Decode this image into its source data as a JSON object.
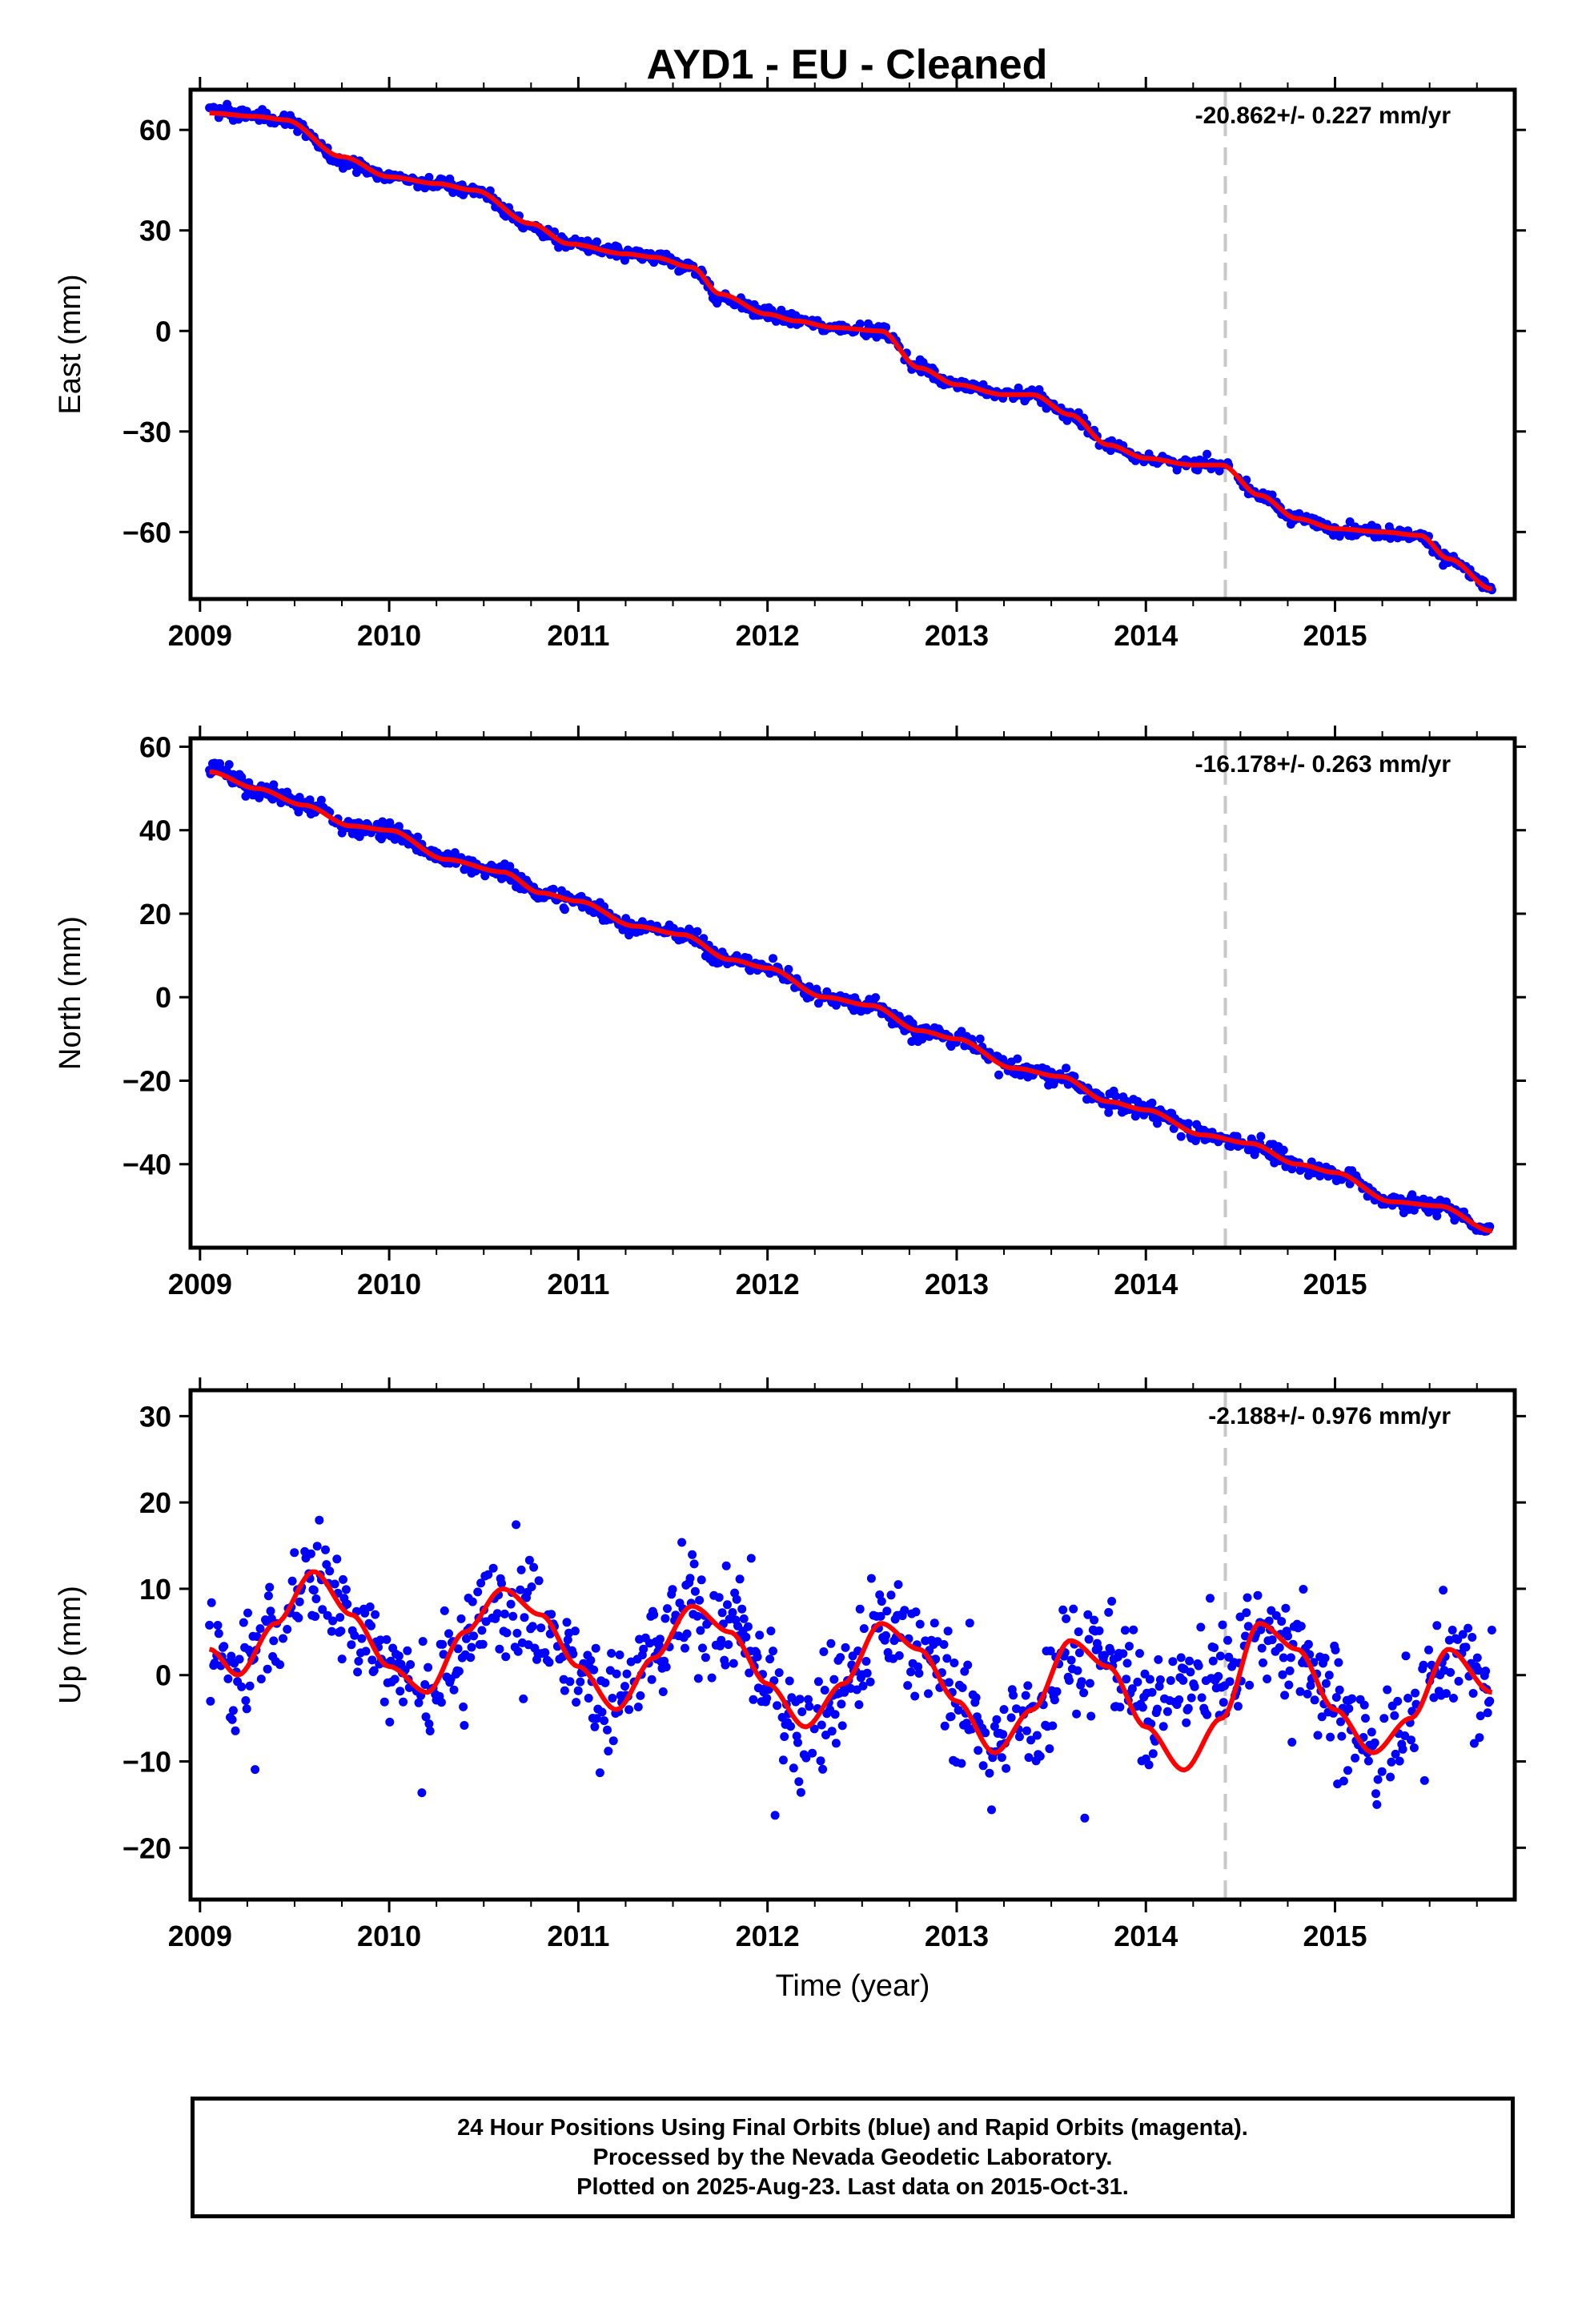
{
  "title": "AYD1  - EU - Cleaned",
  "footer": {
    "line1": "24 Hour Positions Using Final Orbits (blue) and Rapid Orbits (magenta).",
    "line2": "Processed by the Nevada Geodetic Laboratory.",
    "line3": "Plotted on 2025-Aug-23. Last data on 2015-Oct-31."
  },
  "colors": {
    "daily_positions": "#0000ff",
    "model_fit": "#ff0000",
    "event_marker": "#c8c8c8",
    "frame": "#000000"
  },
  "chart_data": [
    {
      "type": "scatter",
      "ylabel": "East (mm)",
      "xlabel": "",
      "rate_label": "-20.862+/- 0.227 mm/yr",
      "xlim": [
        2008.95,
        2015.95
      ],
      "ylim": [
        -80,
        72
      ],
      "yticks": [
        -60,
        -30,
        0,
        30,
        60
      ],
      "ytick_labels": [
        "−60",
        "−30",
        "0",
        "30",
        "60"
      ],
      "xticks": [
        2009,
        2010,
        2011,
        2012,
        2013,
        2014,
        2015
      ],
      "xtick_labels": [
        "2009",
        "2010",
        "2011",
        "2012",
        "2013",
        "2014",
        "2015"
      ],
      "event_line_x": 2014.42,
      "data_range": [
        2009.05,
        2015.83
      ],
      "series": [
        {
          "kind": "points",
          "noise": 1.3,
          "outlier_rate": 0.0,
          "x": [
            2009.05,
            2009.3,
            2009.45,
            2009.75,
            2010.0,
            2010.25,
            2010.45,
            2010.75,
            2010.95,
            2011.25,
            2011.4,
            2011.6,
            2011.75,
            2012.0,
            2012.15,
            2012.35,
            2012.6,
            2012.8,
            2013.0,
            2013.25,
            2013.4,
            2013.6,
            2013.8,
            2014.0,
            2014.25,
            2014.4,
            2014.6,
            2014.8,
            2015.0,
            2015.25,
            2015.45,
            2015.6,
            2015.83
          ],
          "y": [
            66,
            64,
            63,
            51,
            46,
            44,
            42,
            31,
            26,
            23,
            22,
            19,
            10,
            5,
            3,
            1,
            0,
            -11,
            -16,
            -19,
            -19,
            -25,
            -34,
            -38,
            -40,
            -40,
            -49,
            -56,
            -59,
            -60,
            -61,
            -68,
            -77
          ]
        },
        {
          "kind": "line",
          "x": [
            2009.05,
            2009.3,
            2009.45,
            2009.75,
            2010.0,
            2010.25,
            2010.45,
            2010.75,
            2010.95,
            2011.25,
            2011.4,
            2011.6,
            2011.75,
            2012.0,
            2012.15,
            2012.35,
            2012.6,
            2012.8,
            2013.0,
            2013.25,
            2013.4,
            2013.6,
            2013.8,
            2014.0,
            2014.25,
            2014.4,
            2014.6,
            2014.8,
            2015.0,
            2015.25,
            2015.45,
            2015.6,
            2015.83
          ],
          "y": [
            65,
            64,
            63,
            52,
            46,
            44,
            42,
            32,
            26,
            23,
            22,
            19,
            11,
            5,
            3,
            1,
            0,
            -11,
            -16,
            -19,
            -19,
            -25,
            -34,
            -38,
            -40,
            -40,
            -49,
            -56,
            -59,
            -60,
            -61,
            -68,
            -77
          ]
        }
      ]
    },
    {
      "type": "scatter",
      "ylabel": "North (mm)",
      "xlabel": "",
      "rate_label": "-16.178+/- 0.263 mm/yr",
      "xlim": [
        2008.95,
        2015.95
      ],
      "ylim": [
        -60,
        62
      ],
      "yticks": [
        -40,
        -20,
        0,
        20,
        40,
        60
      ],
      "ytick_labels": [
        "−40",
        "−20",
        "0",
        "20",
        "40",
        "60"
      ],
      "xticks": [
        2009,
        2010,
        2011,
        2012,
        2013,
        2014,
        2015
      ],
      "xtick_labels": [
        "2009",
        "2010",
        "2011",
        "2012",
        "2013",
        "2014",
        "2015"
      ],
      "event_line_x": 2014.42,
      "data_range": [
        2009.05,
        2015.83
      ],
      "series": [
        {
          "kind": "points",
          "noise": 1.4,
          "outlier_rate": 0.004,
          "x": [
            2009.05,
            2009.3,
            2009.55,
            2009.8,
            2010.0,
            2010.3,
            2010.6,
            2010.8,
            2011.0,
            2011.3,
            2011.55,
            2011.8,
            2012.0,
            2012.3,
            2012.55,
            2012.8,
            2013.0,
            2013.3,
            2013.55,
            2013.8,
            2014.0,
            2014.3,
            2014.55,
            2014.8,
            2015.0,
            2015.3,
            2015.55,
            2015.83
          ],
          "y": [
            55,
            50,
            46,
            41,
            40,
            33,
            30,
            25,
            23,
            17,
            15,
            9,
            7,
            0,
            -2,
            -8,
            -10,
            -17,
            -19,
            -25,
            -27,
            -33,
            -35,
            -40,
            -42,
            -49,
            -50,
            -56
          ]
        },
        {
          "kind": "line",
          "x": [
            2009.05,
            2009.3,
            2009.55,
            2009.8,
            2010.0,
            2010.3,
            2010.6,
            2010.8,
            2011.0,
            2011.3,
            2011.55,
            2011.8,
            2012.0,
            2012.3,
            2012.55,
            2012.8,
            2013.0,
            2013.3,
            2013.55,
            2013.8,
            2014.0,
            2014.3,
            2014.55,
            2014.8,
            2015.0,
            2015.3,
            2015.55,
            2015.83
          ],
          "y": [
            54,
            50,
            46,
            41,
            40,
            33,
            30,
            25,
            23,
            17,
            15,
            9,
            7,
            0,
            -2,
            -8,
            -10,
            -17,
            -19,
            -25,
            -27,
            -33,
            -35,
            -40,
            -42,
            -49,
            -50,
            -56
          ]
        }
      ]
    },
    {
      "type": "scatter",
      "ylabel": "Up (mm)",
      "xlabel": "Time (year)",
      "rate_label": "-2.188+/- 0.976 mm/yr",
      "xlim": [
        2008.95,
        2015.95
      ],
      "ylim": [
        -26,
        33
      ],
      "yticks": [
        -20,
        -10,
        0,
        10,
        20,
        30
      ],
      "ytick_labels": [
        "−20",
        "−10",
        "0",
        "10",
        "20",
        "30"
      ],
      "xticks": [
        2009,
        2010,
        2011,
        2012,
        2013,
        2014,
        2015
      ],
      "xtick_labels": [
        "2009",
        "2010",
        "2011",
        "2012",
        "2013",
        "2014",
        "2015"
      ],
      "event_line_x": 2014.42,
      "data_range": [
        2009.05,
        2015.83
      ],
      "series": [
        {
          "kind": "points",
          "noise": 4.5,
          "outlier_rate": 0.02,
          "x": [
            2009.05,
            2009.2,
            2009.4,
            2009.6,
            2009.8,
            2010.0,
            2010.2,
            2010.4,
            2010.6,
            2010.8,
            2011.0,
            2011.2,
            2011.4,
            2011.6,
            2011.8,
            2012.0,
            2012.2,
            2012.4,
            2012.6,
            2012.8,
            2013.0,
            2013.2,
            2013.4,
            2013.6,
            2013.8,
            2014.0,
            2014.2,
            2014.4,
            2014.6,
            2014.8,
            2015.0,
            2015.2,
            2015.4,
            2015.6,
            2015.83
          ],
          "y": [
            3,
            0,
            5,
            12,
            7,
            1,
            -2,
            4,
            10,
            8,
            1,
            -4,
            2,
            8,
            6,
            -1,
            -6,
            -1,
            5,
            4,
            -2,
            -8,
            -5,
            3,
            2,
            -3,
            -2,
            0,
            5,
            3,
            -3,
            -9,
            -6,
            3,
            -2
          ]
        },
        {
          "kind": "line",
          "x": [
            2009.05,
            2009.2,
            2009.4,
            2009.6,
            2009.8,
            2010.0,
            2010.2,
            2010.4,
            2010.6,
            2010.8,
            2011.0,
            2011.2,
            2011.4,
            2011.6,
            2011.8,
            2012.0,
            2012.2,
            2012.4,
            2012.6,
            2012.8,
            2013.0,
            2013.2,
            2013.4,
            2013.6,
            2013.8,
            2014.0,
            2014.2,
            2014.4,
            2014.6,
            2014.8,
            2015.0,
            2015.2,
            2015.4,
            2015.6,
            2015.83
          ],
          "y": [
            3,
            0,
            6,
            12,
            7,
            1,
            -2,
            5,
            10,
            7,
            1,
            -4,
            2,
            8,
            5,
            -1,
            -6,
            -1,
            6,
            3,
            -3,
            -9,
            -4,
            4,
            1,
            -6,
            -11,
            -5,
            6,
            3,
            -4,
            -9,
            -5,
            3,
            -2
          ]
        }
      ]
    }
  ]
}
